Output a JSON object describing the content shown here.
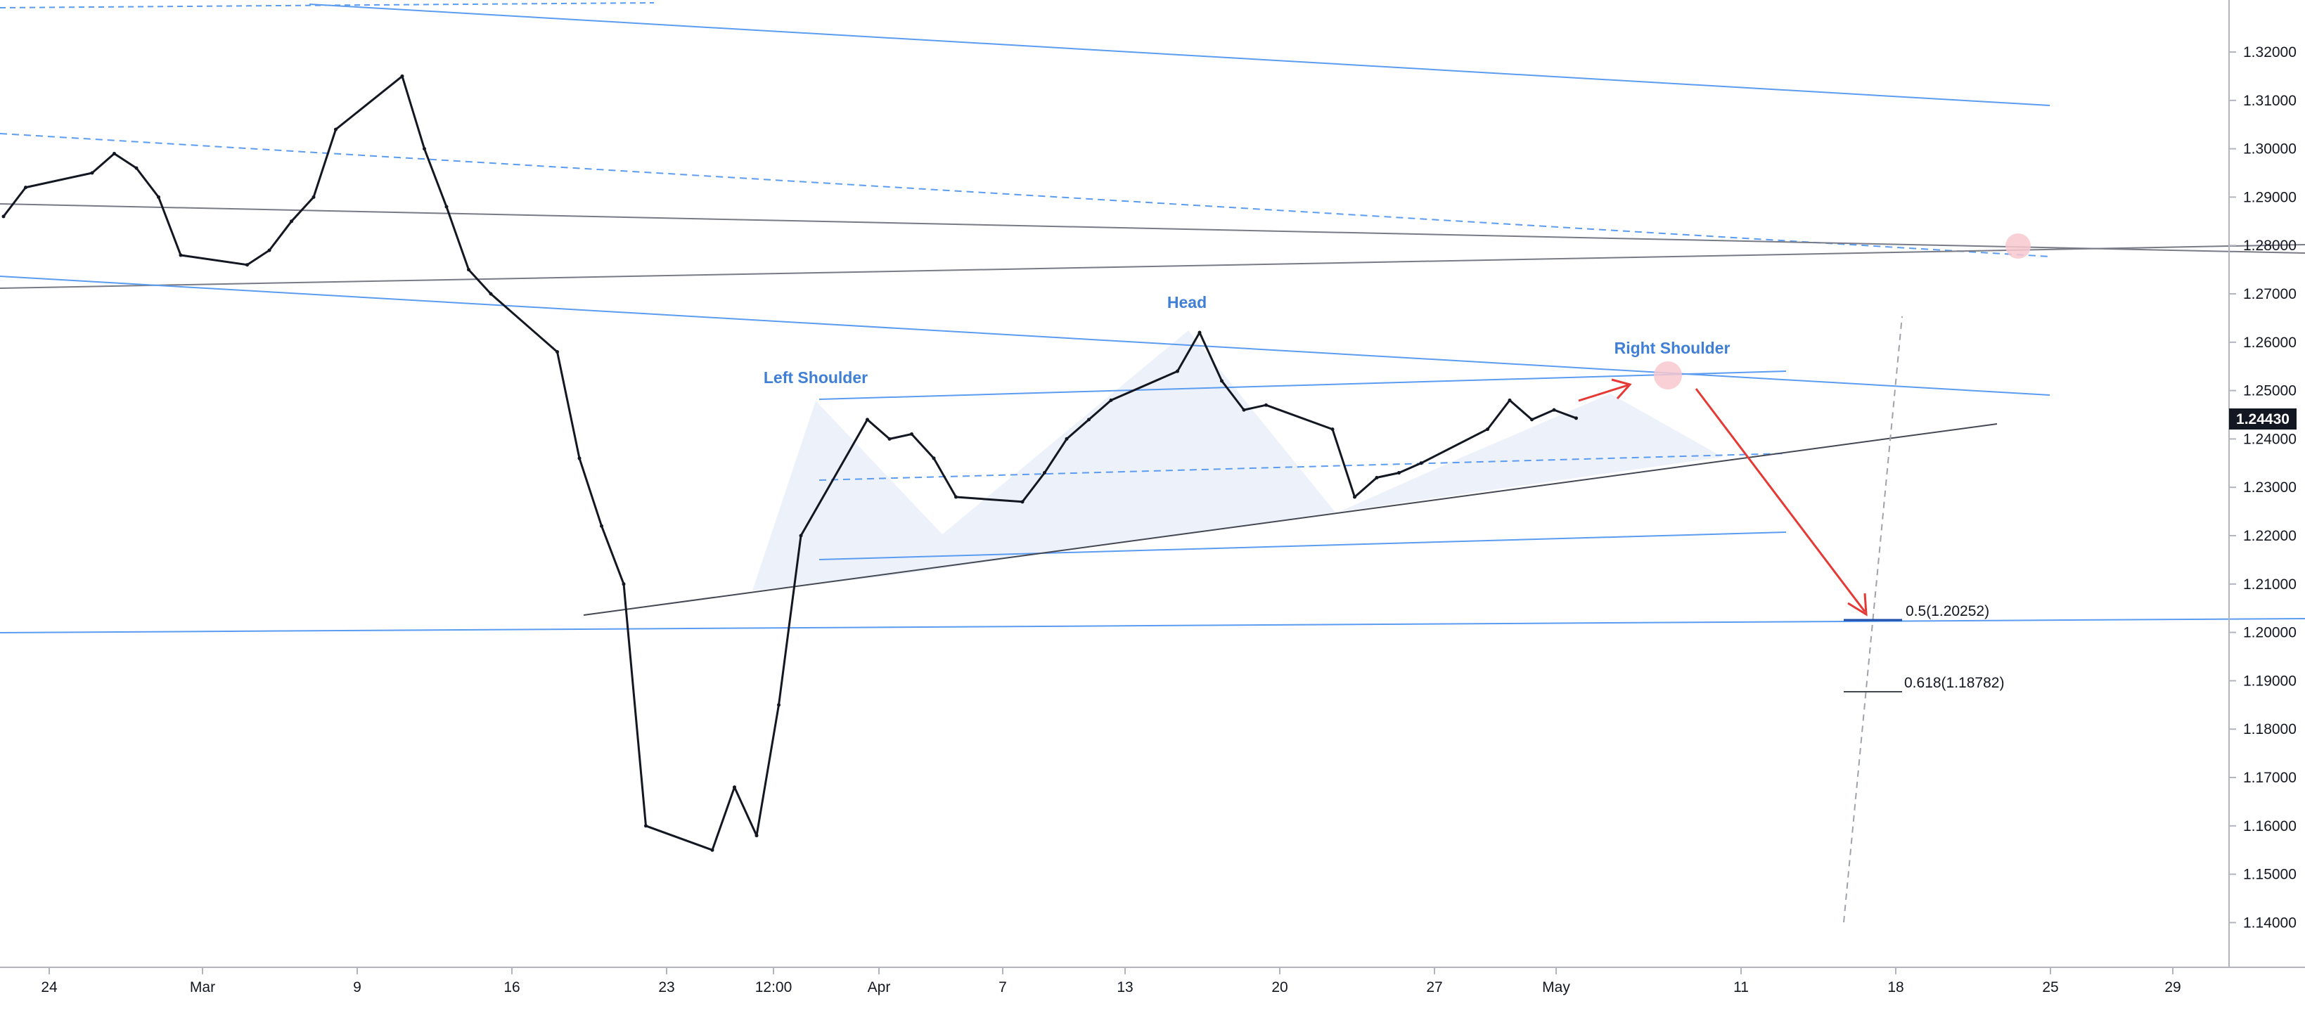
{
  "chart_data": {
    "type": "line",
    "title": "",
    "xlabel": "",
    "ylabel": "",
    "ylim": [
      1.1355,
      1.3315
    ],
    "y_ticks": [
      "1.32000",
      "1.31000",
      "1.30000",
      "1.29000",
      "1.28000",
      "1.27000",
      "1.26000",
      "1.25000",
      "1.24000",
      "1.23000",
      "1.22000",
      "1.21000",
      "1.20000",
      "1.19000",
      "1.18000",
      "1.17000",
      "1.16000",
      "1.15000",
      "1.14000"
    ],
    "x_ticks": [
      "24",
      "Mar",
      "9",
      "16",
      "23",
      "12:00",
      "Apr",
      "7",
      "13",
      "20",
      "27",
      "May",
      "11",
      "18",
      "25",
      "29"
    ],
    "grid": false,
    "last_price": "1.24430",
    "series": [
      {
        "values": [
          {
            "d": "2020-02-20",
            "v": 1.286
          },
          {
            "d": "2020-02-21",
            "v": 1.292
          },
          {
            "d": "2020-02-24",
            "v": 1.295
          },
          {
            "d": "2020-02-25",
            "v": 1.299
          },
          {
            "d": "2020-02-26",
            "v": 1.296
          },
          {
            "d": "2020-02-27",
            "v": 1.29
          },
          {
            "d": "2020-02-28",
            "v": 1.278
          },
          {
            "d": "2020-03-02",
            "v": 1.276
          },
          {
            "d": "2020-03-03",
            "v": 1.279
          },
          {
            "d": "2020-03-04",
            "v": 1.285
          },
          {
            "d": "2020-03-05",
            "v": 1.29
          },
          {
            "d": "2020-03-06",
            "v": 1.304
          },
          {
            "d": "2020-03-09",
            "v": 1.315
          },
          {
            "d": "2020-03-10",
            "v": 1.3
          },
          {
            "d": "2020-03-11",
            "v": 1.288
          },
          {
            "d": "2020-03-12",
            "v": 1.275
          },
          {
            "d": "2020-03-13",
            "v": 1.27
          },
          {
            "d": "2020-03-16",
            "v": 1.258
          },
          {
            "d": "2020-03-17",
            "v": 1.236
          },
          {
            "d": "2020-03-18",
            "v": 1.222
          },
          {
            "d": "2020-03-19",
            "v": 1.21
          },
          {
            "d": "2020-03-20",
            "v": 1.16
          },
          {
            "d": "2020-03-23",
            "v": 1.155
          },
          {
            "d": "2020-03-24",
            "v": 1.168
          },
          {
            "d": "2020-03-25",
            "v": 1.158
          },
          {
            "d": "2020-03-26",
            "v": 1.185
          },
          {
            "d": "2020-03-27",
            "v": 1.22
          },
          {
            "d": "2020-03-30",
            "v": 1.244
          },
          {
            "d": "2020-03-31",
            "v": 1.24
          },
          {
            "d": "2020-04-01",
            "v": 1.241
          },
          {
            "d": "2020-04-02",
            "v": 1.236
          },
          {
            "d": "2020-04-03",
            "v": 1.228
          },
          {
            "d": "2020-04-06",
            "v": 1.227
          },
          {
            "d": "2020-04-07",
            "v": 1.233
          },
          {
            "d": "2020-04-08",
            "v": 1.24
          },
          {
            "d": "2020-04-09",
            "v": 1.244
          },
          {
            "d": "2020-04-10",
            "v": 1.248
          },
          {
            "d": "2020-04-13",
            "v": 1.254
          },
          {
            "d": "2020-04-14",
            "v": 1.262
          },
          {
            "d": "2020-04-15",
            "v": 1.252
          },
          {
            "d": "2020-04-16",
            "v": 1.246
          },
          {
            "d": "2020-04-17",
            "v": 1.247
          },
          {
            "d": "2020-04-20",
            "v": 1.242
          },
          {
            "d": "2020-04-21",
            "v": 1.228
          },
          {
            "d": "2020-04-22",
            "v": 1.232
          },
          {
            "d": "2020-04-23",
            "v": 1.233
          },
          {
            "d": "2020-04-24",
            "v": 1.235
          },
          {
            "d": "2020-04-27",
            "v": 1.242
          },
          {
            "d": "2020-04-28",
            "v": 1.248
          },
          {
            "d": "2020-04-29",
            "v": 1.244
          },
          {
            "d": "2020-04-30",
            "v": 1.246
          },
          {
            "d": "2020-05-01",
            "v": 1.2443
          }
        ]
      }
    ],
    "annotations": {
      "left_shoulder": "Left Shoulder",
      "head": "Head",
      "right_shoulder": "Right Shoulder",
      "fib_05": "0.5(1.20252)",
      "fib_0618": "0.618(1.18782)"
    }
  },
  "colors": {
    "candle": "#131722",
    "trend_blue": "#5b9cf0",
    "trend_gray": "#787b86",
    "arrow_red": "#e53935",
    "label_blue": "#3f7fd6",
    "price_tag_bg": "#131722",
    "pink_marker": "#f8c8cf",
    "pattern_fill": "#e8eff9"
  }
}
